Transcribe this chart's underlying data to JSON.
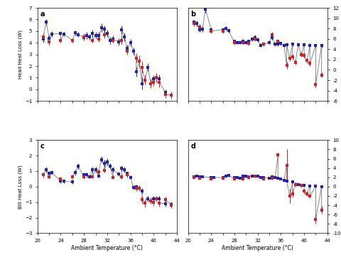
{
  "panel_a": {
    "label": "a",
    "ylabel": "Head Heat Loss (W)",
    "ylim": [
      -1,
      7
    ],
    "yticks": [
      -1,
      0,
      1,
      2,
      3,
      4,
      5,
      6,
      7
    ],
    "blue_x": [
      21,
      21.5,
      22,
      22.5,
      24,
      24.5,
      26,
      26.5,
      27,
      28,
      28.5,
      29,
      29.5,
      30,
      30.5,
      31,
      31.5,
      32,
      32.5,
      33,
      34,
      34.5,
      35,
      35.5,
      36,
      36.5,
      37,
      38,
      39,
      40,
      41,
      42,
      43
    ],
    "blue_y": [
      4.3,
      5.8,
      4.4,
      4.75,
      4.8,
      4.75,
      4.2,
      4.85,
      4.7,
      4.45,
      4.6,
      4.5,
      4.8,
      4.65,
      4.6,
      5.3,
      5.15,
      4.8,
      4.2,
      4.3,
      4.1,
      5.1,
      4.5,
      3.5,
      4.0,
      3.3,
      1.5,
      0.5,
      1.9,
      0.9,
      0.9,
      -0.25,
      -0.5
    ],
    "blue_yerr": [
      0.3,
      0.25,
      0.3,
      0.25,
      0.2,
      0.2,
      0.2,
      0.2,
      0.2,
      0.25,
      0.3,
      0.25,
      0.3,
      0.25,
      0.3,
      0.35,
      0.35,
      0.3,
      0.3,
      0.3,
      0.3,
      0.35,
      0.35,
      0.35,
      0.3,
      0.3,
      0.4,
      0.5,
      0.35,
      0.3,
      0.35,
      0.25,
      0.2
    ],
    "red_x": [
      21,
      22,
      24,
      26,
      28,
      29.5,
      30.5,
      31.5,
      33,
      34.5,
      35.5,
      37,
      37.5,
      38,
      38.5,
      39.5,
      40,
      40.5,
      41,
      42,
      43
    ],
    "red_y": [
      4.5,
      4.1,
      4.2,
      4.2,
      4.5,
      4.2,
      4.3,
      4.7,
      4.2,
      4.2,
      3.3,
      2.7,
      2.4,
      1.9,
      0.8,
      0.5,
      0.6,
      1.0,
      0.6,
      -0.45,
      -0.5
    ],
    "red_yerr": [
      0.3,
      0.3,
      0.2,
      0.2,
      0.3,
      0.2,
      0.2,
      0.3,
      0.2,
      0.3,
      0.3,
      0.4,
      0.5,
      0.5,
      0.4,
      0.4,
      0.3,
      0.4,
      0.4,
      0.3,
      0.3
    ]
  },
  "panel_b": {
    "label": "b",
    "ylabel": "Head Heat Loss (% Total)",
    "ylim": [
      -6,
      12
    ],
    "yticks": [
      -6,
      -4,
      -2,
      0,
      2,
      4,
      6,
      8,
      10,
      12
    ],
    "blue_x": [
      21,
      21.5,
      22,
      22.5,
      23,
      24,
      26,
      26.5,
      27,
      28,
      28.5,
      29,
      29.5,
      30,
      30.5,
      31,
      31.5,
      32,
      32.5,
      33,
      34,
      34.5,
      35,
      35.5,
      36,
      36.5,
      37,
      38,
      39,
      40,
      41,
      42,
      43
    ],
    "blue_y": [
      9.2,
      9.0,
      7.8,
      7.9,
      11.8,
      7.8,
      7.8,
      8.0,
      7.6,
      5.5,
      5.3,
      5.3,
      5.6,
      5.3,
      5.5,
      6.0,
      6.3,
      5.8,
      4.8,
      5.0,
      5.3,
      6.3,
      5.0,
      5.0,
      5.1,
      4.8,
      4.9,
      5.0,
      4.9,
      4.9,
      4.8,
      4.7,
      4.7
    ],
    "blue_yerr": [
      0.5,
      0.5,
      0.5,
      0.5,
      0.7,
      0.4,
      0.4,
      0.4,
      0.45,
      0.35,
      0.35,
      0.35,
      0.35,
      0.35,
      0.35,
      0.45,
      0.45,
      0.4,
      0.35,
      0.35,
      0.35,
      0.45,
      0.35,
      0.35,
      0.35,
      0.35,
      0.35,
      0.35,
      0.35,
      0.35,
      0.35,
      0.35,
      0.35
    ],
    "red_x": [
      21,
      22,
      24,
      26,
      28,
      29.5,
      30.5,
      31.5,
      33,
      34.5,
      35.5,
      37,
      37.5,
      38,
      38.5,
      39.5,
      40,
      40.5,
      41,
      42,
      43
    ],
    "red_y": [
      9.0,
      8.3,
      7.5,
      7.5,
      5.3,
      5.3,
      5.2,
      6.0,
      5.0,
      6.8,
      5.5,
      0.9,
      2.2,
      2.5,
      1.5,
      3.0,
      2.8,
      1.8,
      1.3,
      -2.8,
      -1.0
    ],
    "red_yerr": [
      0.5,
      0.5,
      0.4,
      0.4,
      0.4,
      0.4,
      0.4,
      0.4,
      0.4,
      0.5,
      0.4,
      0.7,
      0.5,
      0.5,
      0.5,
      0.5,
      0.5,
      0.5,
      0.5,
      0.5,
      0.5
    ]
  },
  "panel_c": {
    "label": "c",
    "ylabel": "Bill Heat Loss (W)",
    "ylim": [
      -3,
      3
    ],
    "yticks": [
      -3,
      -2,
      -1,
      0,
      1,
      2,
      3
    ],
    "blue_x": [
      21,
      21.5,
      22,
      22.5,
      24,
      24.5,
      26,
      26.5,
      27,
      28,
      28.5,
      29,
      29.5,
      30,
      30.5,
      31,
      31.5,
      32,
      32.5,
      33,
      34,
      34.5,
      35,
      35.5,
      36,
      36.5,
      37,
      38,
      39,
      40,
      41,
      42,
      43
    ],
    "blue_y": [
      0.75,
      1.1,
      0.85,
      0.9,
      0.35,
      0.35,
      0.3,
      0.9,
      1.3,
      0.75,
      0.75,
      0.65,
      1.1,
      1.1,
      0.7,
      1.75,
      1.5,
      1.6,
      1.3,
      1.1,
      0.8,
      1.2,
      1.1,
      0.85,
      0.6,
      -0.05,
      0.0,
      -0.3,
      -0.8,
      -0.8,
      -0.8,
      -1.1,
      -1.15
    ],
    "blue_yerr": [
      0.15,
      0.18,
      0.15,
      0.15,
      0.12,
      0.12,
      0.12,
      0.18,
      0.18,
      0.15,
      0.15,
      0.12,
      0.18,
      0.18,
      0.12,
      0.22,
      0.22,
      0.22,
      0.18,
      0.18,
      0.12,
      0.18,
      0.18,
      0.12,
      0.12,
      0.12,
      0.12,
      0.18,
      0.18,
      0.18,
      0.18,
      0.18,
      0.18
    ],
    "red_x": [
      21,
      22,
      24,
      26,
      28,
      29.5,
      30.5,
      31.5,
      33,
      34.5,
      35.5,
      37,
      37.5,
      38,
      38.5,
      39.5,
      40,
      40.5,
      41,
      42,
      43
    ],
    "red_y": [
      0.75,
      0.65,
      0.5,
      0.65,
      0.65,
      0.65,
      0.95,
      1.05,
      0.6,
      0.65,
      0.75,
      -0.1,
      -0.1,
      -0.85,
      -1.05,
      -0.9,
      -1.0,
      -0.8,
      -1.05,
      -0.85,
      -1.2
    ],
    "red_yerr": [
      0.15,
      0.15,
      0.12,
      0.12,
      0.15,
      0.12,
      0.12,
      0.15,
      0.12,
      0.15,
      0.15,
      0.18,
      0.18,
      0.25,
      0.28,
      0.22,
      0.22,
      0.18,
      0.22,
      0.18,
      0.18
    ]
  },
  "panel_d": {
    "label": "d",
    "ylabel": "Bill Heat Loss (% Total)",
    "ylim": [
      -10,
      10
    ],
    "yticks": [
      -10,
      -8,
      -6,
      -4,
      -2,
      0,
      2,
      4,
      6,
      8,
      10
    ],
    "blue_x": [
      21,
      21.5,
      22,
      22.5,
      24,
      24.5,
      26,
      26.5,
      27,
      28,
      28.5,
      29,
      29.5,
      30,
      30.5,
      31,
      31.5,
      32,
      32.5,
      33,
      34,
      34.5,
      35,
      35.5,
      36,
      36.5,
      37,
      38,
      39,
      40,
      41,
      42,
      43
    ],
    "blue_y": [
      2.1,
      2.3,
      2.1,
      2.1,
      2.0,
      2.0,
      1.9,
      2.2,
      2.4,
      1.9,
      1.9,
      1.8,
      2.2,
      2.2,
      1.9,
      2.3,
      2.2,
      2.2,
      2.0,
      1.9,
      1.8,
      2.1,
      2.0,
      1.8,
      1.7,
      1.3,
      1.2,
      1.0,
      0.5,
      0.3,
      0.2,
      0.1,
      0.0
    ],
    "blue_yerr": [
      0.2,
      0.2,
      0.2,
      0.2,
      0.2,
      0.2,
      0.2,
      0.2,
      0.25,
      0.2,
      0.2,
      0.2,
      0.22,
      0.22,
      0.2,
      0.25,
      0.25,
      0.25,
      0.2,
      0.2,
      0.2,
      0.22,
      0.2,
      0.2,
      0.2,
      0.2,
      0.2,
      0.2,
      0.2,
      0.2,
      0.2,
      0.2,
      0.2
    ],
    "red_x": [
      21,
      22,
      24,
      26,
      28,
      29.5,
      30.5,
      31.5,
      33,
      34.5,
      35.5,
      37,
      37.5,
      38,
      38.5,
      39.5,
      40,
      40.5,
      41,
      42,
      43
    ],
    "red_y": [
      1.9,
      1.8,
      1.7,
      1.8,
      1.7,
      1.7,
      2.1,
      2.3,
      1.6,
      1.8,
      6.8,
      4.5,
      -2.0,
      -1.5,
      0.5,
      0.3,
      -1.0,
      -1.5,
      -2.0,
      -7.0,
      -5.0
    ],
    "red_yerr": [
      0.3,
      0.3,
      0.3,
      0.3,
      0.3,
      0.3,
      0.3,
      0.3,
      0.3,
      0.3,
      0.5,
      3.5,
      1.5,
      0.8,
      0.5,
      0.5,
      0.5,
      0.5,
      0.5,
      1.0,
      0.8
    ]
  },
  "xlabel": "Ambient Temperature (°C)",
  "xlim": [
    20,
    44
  ],
  "xticks": [
    20,
    22,
    24,
    26,
    28,
    30,
    32,
    34,
    36,
    38,
    40,
    42,
    44
  ],
  "blue_color": "#2222aa",
  "red_color": "#cc2222",
  "line_color": "#888888",
  "bg_color": "#ffffff"
}
